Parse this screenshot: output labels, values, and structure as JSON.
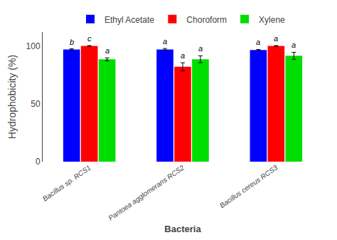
{
  "chart_data": {
    "type": "bar",
    "categories": [
      "Bacillus sp. RCS1",
      "Pantoea agglomerans RCS2",
      "Bacillus cereus RCS3"
    ],
    "series": [
      {
        "name": "Ethyl Acetate",
        "color": "#0000FF",
        "values": [
          97.0,
          97.0,
          96.5
        ],
        "errors": [
          0.5,
          0.8,
          0.5
        ],
        "labels": [
          "b",
          "a",
          "a"
        ]
      },
      {
        "name": "Choroform",
        "color": "#FF0000",
        "values": [
          100.0,
          82.0,
          100.0
        ],
        "errors": [
          0.3,
          3.5,
          0.3
        ],
        "labels": [
          "c",
          "a",
          "a"
        ]
      },
      {
        "name": "Xylene",
        "color": "#00DD00",
        "values": [
          88.5,
          88.5,
          91.5
        ],
        "errors": [
          1.2,
          3.0,
          3.0
        ],
        "labels": [
          "a",
          "a",
          "a"
        ]
      }
    ],
    "xlabel": "Bacteria",
    "ylabel": "Hydrophobicity (%)",
    "ylim": [
      0,
      112
    ],
    "yticks": [
      0,
      50,
      100
    ],
    "grid": false,
    "legend": "top"
  }
}
